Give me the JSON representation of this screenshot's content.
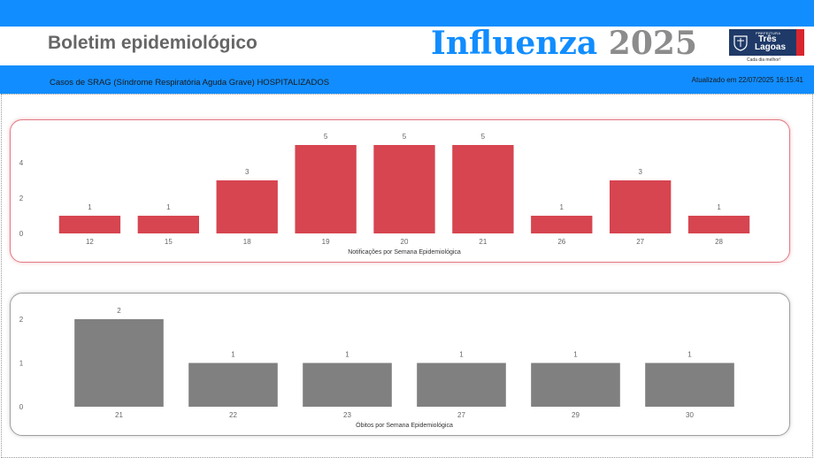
{
  "header": {
    "title": "Boletim epidemiológico",
    "brand_word1": "Influenza",
    "brand_word2": "2025",
    "logo_small": "PREFEITURA",
    "logo_name1": "Três",
    "logo_name2": "Lagoas",
    "logo_slogan": "Cada dia melhor!"
  },
  "subheader": {
    "subtitle": "Casos de SRAG (Síndrome Respiratória Aguda Grave) HOSPITALIZADOS",
    "updated": "Atualizado em 22/07/2025 16:15:41"
  },
  "colors": {
    "accent": "#118DFF",
    "notifications_bar": "#D64550",
    "deaths_bar": "#808080"
  },
  "chart_data": [
    {
      "type": "bar",
      "categories": [
        "12",
        "15",
        "18",
        "19",
        "20",
        "21",
        "26",
        "27",
        "28"
      ],
      "values": [
        1,
        1,
        3,
        5,
        5,
        5,
        1,
        3,
        1
      ],
      "xlabel": "Notificações por Semana Epidemiológica",
      "ylabel": "",
      "yticks": [
        0,
        2,
        4
      ],
      "ylim": [
        0,
        5
      ],
      "grid": false,
      "data_labels": true
    },
    {
      "type": "bar",
      "categories": [
        "21",
        "22",
        "23",
        "27",
        "29",
        "30"
      ],
      "values": [
        2,
        1,
        1,
        1,
        1,
        1
      ],
      "xlabel": "Óbitos por Semana Epidemiológica",
      "ylabel": "",
      "yticks": [
        0,
        1,
        2
      ],
      "ylim": [
        0,
        2
      ],
      "grid": false,
      "data_labels": true
    }
  ]
}
